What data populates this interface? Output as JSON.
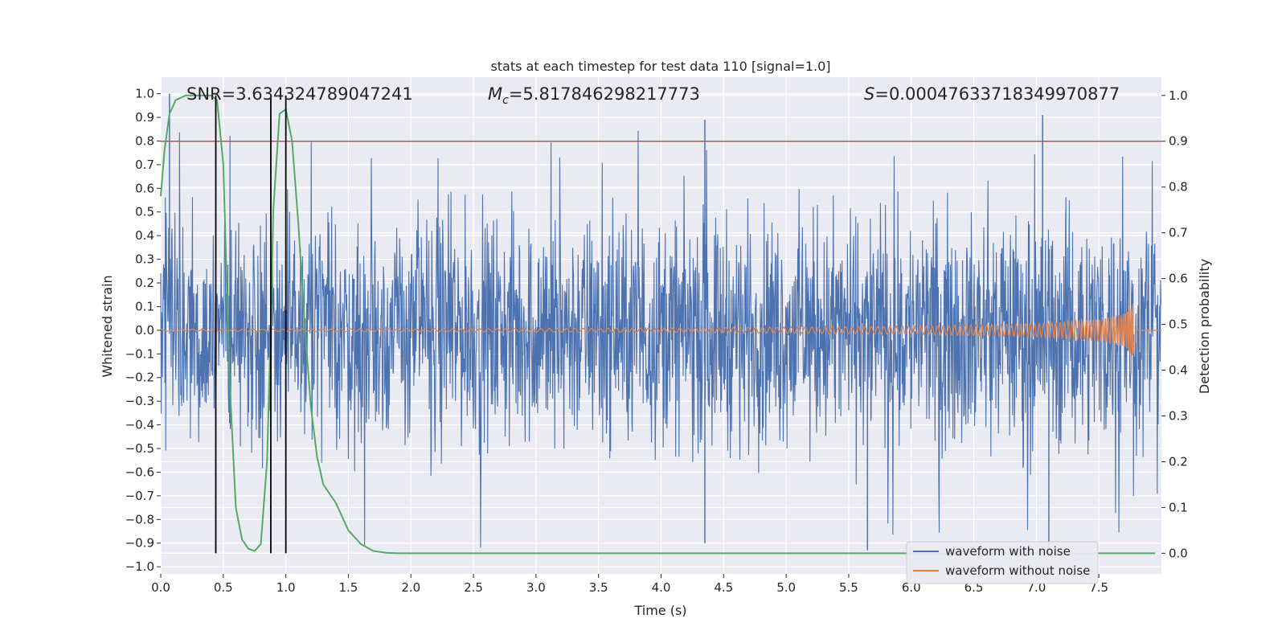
{
  "chart_data": {
    "type": "line",
    "title": "stats at each timestep for test data 110 [signal=1.0]",
    "xlabel": "Time (s)",
    "ylabel": "Whitened strain",
    "y2label": "Detection probability",
    "xlim": [
      0.0,
      8.0
    ],
    "ylim": [
      -1.03,
      1.07
    ],
    "y2lim": [
      -0.045,
      1.04
    ],
    "xticks": [
      "0.0",
      "0.5",
      "1.0",
      "1.5",
      "2.0",
      "2.5",
      "3.0",
      "3.5",
      "4.0",
      "4.5",
      "5.0",
      "5.5",
      "6.0",
      "6.5",
      "7.0",
      "7.5"
    ],
    "xtick_values": [
      0,
      0.5,
      1,
      1.5,
      2,
      2.5,
      3,
      3.5,
      4,
      4.5,
      5,
      5.5,
      6,
      6.5,
      7,
      7.5
    ],
    "yticks": [
      "1.0",
      "0.9",
      "0.8",
      "0.7",
      "0.6",
      "0.5",
      "0.4",
      "0.3",
      "0.2",
      "0.1",
      "0.0",
      "−0.1",
      "−0.2",
      "−0.3",
      "−0.4",
      "−0.5",
      "−0.6",
      "−0.7",
      "−0.8",
      "−0.9",
      "−1.0"
    ],
    "ytick_values": [
      1,
      0.9,
      0.8,
      0.7,
      0.6,
      0.5,
      0.4,
      0.3,
      0.2,
      0.1,
      0,
      -0.1,
      -0.2,
      -0.3,
      -0.4,
      -0.5,
      -0.6,
      -0.7,
      -0.8,
      -0.9,
      -1.0
    ],
    "y2ticks": [
      "1.0",
      "0.9",
      "0.8",
      "0.7",
      "0.6",
      "0.5",
      "0.4",
      "0.3",
      "0.2",
      "0.1",
      "0.0"
    ],
    "y2tick_values": [
      1,
      0.9,
      0.8,
      0.7,
      0.6,
      0.5,
      0.4,
      0.3,
      0.2,
      0.1,
      0
    ],
    "annotations": {
      "snr": "SNR=3.634324789047241",
      "mc_symbol": "M",
      "mc_sub": "c",
      "mc_value": "=5.817846298217773",
      "s_symbol": "S",
      "s_value": "=0.00047633718349970877"
    },
    "series": [
      {
        "name": "waveform with noise",
        "color": "#4c72b0",
        "axis": "left",
        "description": "dense whitened strain noise, typical range about -0.6 to 0.6 with spikes near +/-0.9",
        "envelope": {
          "t_start": 0.0,
          "t_end": 8.0,
          "typical_amplitude": 0.45,
          "peak_amplitude": 0.92
        },
        "notable_spikes": [
          {
            "t": 0.07,
            "y": 1.0
          },
          {
            "t": 4.35,
            "y": 0.89
          },
          {
            "t": 7.05,
            "y": 0.91
          },
          {
            "t": 5.65,
            "y": -0.93
          },
          {
            "t": 4.35,
            "y": -0.9
          },
          {
            "t": 7.1,
            "y": -0.92
          }
        ]
      },
      {
        "name": "waveform without noise",
        "color": "#dd8452",
        "axis": "left",
        "description": "chirp signal growing in amplitude until merger near t=7.8 s",
        "t_merger": 7.8,
        "amplitude_points": [
          [
            0.0,
            0.004
          ],
          [
            2.0,
            0.006
          ],
          [
            4.0,
            0.009
          ],
          [
            6.0,
            0.017
          ],
          [
            7.0,
            0.028
          ],
          [
            7.5,
            0.045
          ],
          [
            7.7,
            0.07
          ],
          [
            7.78,
            0.12
          ]
        ],
        "min_at_merger": -0.05
      },
      {
        "name": "detection probability",
        "color": "#55a868",
        "axis": "right",
        "x": [
          0.0,
          0.03,
          0.07,
          0.12,
          0.2,
          0.3,
          0.4,
          0.45,
          0.5,
          0.55,
          0.6,
          0.65,
          0.7,
          0.75,
          0.8,
          0.85,
          0.88,
          0.9,
          0.95,
          1.0,
          1.05,
          1.1,
          1.15,
          1.2,
          1.25,
          1.3,
          1.35,
          1.4,
          1.5,
          1.6,
          1.7,
          1.8,
          1.9,
          2.0,
          3.0,
          4.0,
          5.0,
          6.0,
          7.0,
          7.95
        ],
        "y": [
          0.78,
          0.88,
          0.96,
          0.99,
          1.0,
          1.0,
          1.0,
          0.99,
          0.85,
          0.38,
          0.1,
          0.03,
          0.01,
          0.005,
          0.02,
          0.2,
          0.5,
          0.75,
          0.96,
          0.97,
          0.9,
          0.72,
          0.5,
          0.32,
          0.21,
          0.15,
          0.13,
          0.11,
          0.05,
          0.02,
          0.005,
          0.001,
          0.0,
          0.0,
          0.0,
          0.0,
          0.0,
          0.0,
          0.0,
          0.0
        ]
      }
    ],
    "hlines": [
      {
        "axis": "right",
        "y": 0.9,
        "color": "#c44e52"
      }
    ],
    "vlines": [
      {
        "x": 0.44,
        "color": "#000000"
      },
      {
        "x": 0.88,
        "color": "#000000"
      },
      {
        "x": 1.0,
        "color": "#000000"
      }
    ],
    "legend": {
      "placement": "lower-right",
      "entries": [
        {
          "label": "waveform with noise",
          "color": "#4c72b0"
        },
        {
          "label": "waveform without noise",
          "color": "#dd8452"
        }
      ]
    },
    "background": "#eaeaf2",
    "grid": true
  }
}
